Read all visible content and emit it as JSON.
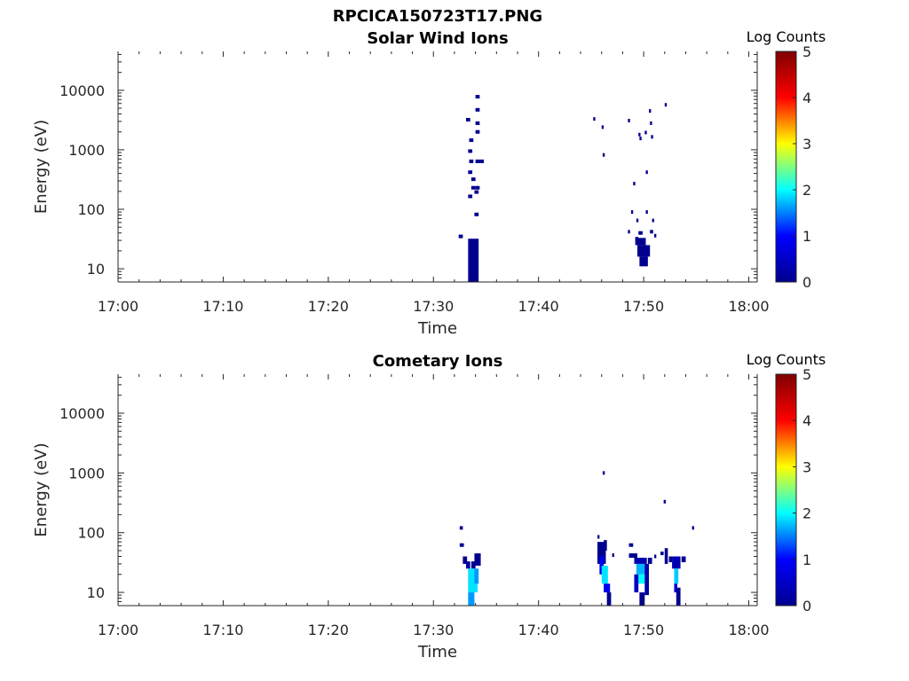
{
  "figure": {
    "title": "RPCICA150723T17.PNG"
  },
  "colormap": {
    "name": "jet",
    "stops": [
      "#00008f",
      "#0000ff",
      "#00ffff",
      "#ffff00",
      "#ff0000",
      "#800000"
    ],
    "label": "Log Counts",
    "range": [
      0,
      5
    ],
    "ticks": [
      0,
      1,
      2,
      3,
      4,
      5
    ]
  },
  "chart_data": [
    {
      "type": "heatmap",
      "title": "Solar Wind Ions",
      "xlabel": "Time",
      "ylabel": "Energy (eV)",
      "x_ticks": [
        "17:00",
        "17:10",
        "17:20",
        "17:30",
        "17:40",
        "17:50",
        "18:00"
      ],
      "x_tick_minutes": [
        0,
        10,
        20,
        30,
        40,
        50,
        60
      ],
      "xlim_minutes": [
        0,
        60.8
      ],
      "yscale": "log",
      "ylim": [
        6,
        45000
      ],
      "y_ticks": [
        10,
        100,
        1000,
        10000
      ],
      "y_tick_labels": [
        "10",
        "100",
        "1000",
        "10000"
      ],
      "cells": [
        {
          "t": 32.4,
          "dt": 0.4,
          "e": 35,
          "v": 0
        },
        {
          "t": 33.3,
          "dt": 1.0,
          "e": 6,
          "e2": 32,
          "v": 0
        },
        {
          "t": 33.1,
          "dt": 0.4,
          "e": 3200,
          "v": 0
        },
        {
          "t": 33.4,
          "dt": 0.4,
          "e": 1450,
          "v": 0
        },
        {
          "t": 33.3,
          "dt": 0.4,
          "e": 950,
          "v": 0
        },
        {
          "t": 33.4,
          "dt": 0.4,
          "e": 640,
          "v": 0
        },
        {
          "t": 33.3,
          "dt": 0.4,
          "e": 420,
          "v": 0
        },
        {
          "t": 33.6,
          "dt": 0.4,
          "e": 320,
          "v": 0
        },
        {
          "t": 33.6,
          "dt": 0.4,
          "e": 230,
          "v": 0
        },
        {
          "t": 33.3,
          "dt": 0.4,
          "e": 165,
          "v": 0
        },
        {
          "t": 33.9,
          "dt": 0.4,
          "e": 82,
          "v": 0
        },
        {
          "t": 34.0,
          "dt": 0.4,
          "e": 7800,
          "v": 0
        },
        {
          "t": 34.0,
          "dt": 0.4,
          "e": 4700,
          "v": 0
        },
        {
          "t": 34.0,
          "dt": 0.4,
          "e": 2800,
          "v": 0
        },
        {
          "t": 34.0,
          "dt": 0.4,
          "e": 2000,
          "v": 0
        },
        {
          "t": 34.0,
          "dt": 0.8,
          "e": 640,
          "v": 0
        },
        {
          "t": 34.0,
          "dt": 0.4,
          "e": 230,
          "v": 0
        },
        {
          "t": 33.9,
          "dt": 0.4,
          "e": 195,
          "v": 0
        },
        {
          "t": 45.2,
          "dt": 0.2,
          "e": 3300,
          "v": 0
        },
        {
          "t": 46.0,
          "dt": 0.2,
          "e": 2400,
          "v": 0
        },
        {
          "t": 46.1,
          "dt": 0.2,
          "e": 820,
          "v": 0
        },
        {
          "t": 48.5,
          "dt": 0.2,
          "e": 3100,
          "v": 0
        },
        {
          "t": 49.0,
          "dt": 0.2,
          "e": 270,
          "v": 0
        },
        {
          "t": 48.8,
          "dt": 0.2,
          "e": 90,
          "v": 0
        },
        {
          "t": 49.3,
          "dt": 0.2,
          "e": 65,
          "v": 0
        },
        {
          "t": 49.5,
          "dt": 0.2,
          "e": 1800,
          "v": 0
        },
        {
          "t": 49.6,
          "dt": 0.2,
          "e": 1550,
          "v": 0
        },
        {
          "t": 50.1,
          "dt": 0.2,
          "e": 1950,
          "v": 0
        },
        {
          "t": 50.6,
          "dt": 0.2,
          "e": 2800,
          "v": 0
        },
        {
          "t": 50.7,
          "dt": 0.2,
          "e": 1650,
          "v": 0
        },
        {
          "t": 50.2,
          "dt": 0.2,
          "e": 420,
          "v": 0
        },
        {
          "t": 50.5,
          "dt": 0.2,
          "e": 4500,
          "v": 0
        },
        {
          "t": 52.0,
          "dt": 0.2,
          "e": 5700,
          "v": 0
        },
        {
          "t": 50.2,
          "dt": 0.2,
          "e": 90,
          "v": 0
        },
        {
          "t": 50.8,
          "dt": 0.2,
          "e": 65,
          "v": 0
        },
        {
          "t": 48.5,
          "dt": 0.2,
          "e": 42,
          "v": 0
        },
        {
          "t": 49.2,
          "dt": 0.3,
          "e": 32,
          "v": 0
        },
        {
          "t": 49.5,
          "dt": 0.4,
          "e": 40,
          "v": 0
        },
        {
          "t": 50.6,
          "dt": 0.3,
          "e": 42,
          "v": 0
        },
        {
          "t": 51.0,
          "dt": 0.2,
          "e": 36,
          "v": 0
        },
        {
          "t": 49.2,
          "dt": 1.0,
          "e": 25,
          "e2": 33,
          "v": 0
        },
        {
          "t": 49.4,
          "dt": 1.2,
          "e": 16,
          "e2": 25,
          "v": 0
        },
        {
          "t": 49.6,
          "dt": 0.8,
          "e": 11,
          "e2": 16,
          "v": 0
        }
      ]
    },
    {
      "type": "heatmap",
      "title": "Cometary Ions",
      "xlabel": "Time",
      "ylabel": "Energy (eV)",
      "x_ticks": [
        "17:00",
        "17:10",
        "17:20",
        "17:30",
        "17:40",
        "17:50",
        "18:00"
      ],
      "x_tick_minutes": [
        0,
        10,
        20,
        30,
        40,
        50,
        60
      ],
      "xlim_minutes": [
        0,
        60.8
      ],
      "yscale": "log",
      "ylim": [
        6,
        45000
      ],
      "y_ticks": [
        10,
        100,
        1000,
        10000
      ],
      "y_tick_labels": [
        "10",
        "100",
        "1000",
        "10000"
      ],
      "cells": [
        {
          "t": 32.5,
          "dt": 0.3,
          "e": 120,
          "v": 0
        },
        {
          "t": 32.5,
          "dt": 0.4,
          "e": 62,
          "v": 0
        },
        {
          "t": 32.8,
          "dt": 0.4,
          "e": 30,
          "e2": 40,
          "v": 0
        },
        {
          "t": 33.1,
          "dt": 0.4,
          "e": 25,
          "e2": 33,
          "v": 0.2
        },
        {
          "t": 33.6,
          "dt": 0.4,
          "e": 25,
          "e2": 33,
          "v": 0
        },
        {
          "t": 33.9,
          "dt": 0.6,
          "e": 28,
          "e2": 45,
          "v": 0
        },
        {
          "t": 33.3,
          "dt": 0.6,
          "e": 6,
          "e2": 10,
          "v": 1.6
        },
        {
          "t": 33.3,
          "dt": 0.9,
          "e": 10,
          "e2": 25,
          "v": 1.9
        },
        {
          "t": 33.9,
          "dt": 0.4,
          "e": 14,
          "e2": 25,
          "v": 1.6
        },
        {
          "t": 46.1,
          "dt": 0.2,
          "e": 1000,
          "v": 0
        },
        {
          "t": 45.6,
          "dt": 0.2,
          "e": 85,
          "v": 0
        },
        {
          "t": 45.6,
          "dt": 0.8,
          "e": 30,
          "e2": 70,
          "v": 0
        },
        {
          "t": 46.2,
          "dt": 0.3,
          "e": 50,
          "e2": 75,
          "v": 0
        },
        {
          "t": 45.8,
          "dt": 0.4,
          "e": 20,
          "e2": 40,
          "v": 0.9
        },
        {
          "t": 46.0,
          "dt": 0.6,
          "e": 14,
          "e2": 28,
          "v": 1.9
        },
        {
          "t": 46.2,
          "dt": 0.6,
          "e": 10,
          "e2": 14,
          "v": 0.8
        },
        {
          "t": 46.5,
          "dt": 0.4,
          "e": 6,
          "e2": 10,
          "v": 0
        },
        {
          "t": 47.0,
          "dt": 0.2,
          "e": 42,
          "v": 0
        },
        {
          "t": 48.6,
          "dt": 0.4,
          "e": 62,
          "v": 0
        },
        {
          "t": 48.6,
          "dt": 0.8,
          "e": 38,
          "e2": 45,
          "v": 0
        },
        {
          "t": 49.1,
          "dt": 1.2,
          "e": 30,
          "e2": 38,
          "v": 0.3
        },
        {
          "t": 49.3,
          "dt": 1.0,
          "e": 20,
          "e2": 30,
          "v": 1.7
        },
        {
          "t": 49.5,
          "dt": 0.6,
          "e": 14,
          "e2": 20,
          "v": 2.0
        },
        {
          "t": 49.1,
          "dt": 0.4,
          "e": 10,
          "e2": 20,
          "v": 0.5
        },
        {
          "t": 49.6,
          "dt": 0.5,
          "e": 6,
          "e2": 10,
          "v": 0
        },
        {
          "t": 50.1,
          "dt": 0.4,
          "e": 9,
          "e2": 30,
          "v": 0.2
        },
        {
          "t": 50.4,
          "dt": 0.4,
          "e": 30,
          "e2": 38,
          "v": 0
        },
        {
          "t": 51.0,
          "dt": 0.2,
          "e": 40,
          "v": 0
        },
        {
          "t": 51.6,
          "dt": 0.3,
          "e": 45,
          "v": 0
        },
        {
          "t": 51.9,
          "dt": 0.2,
          "e": 330,
          "v": 0
        },
        {
          "t": 52.0,
          "dt": 0.3,
          "e": 30,
          "e2": 55,
          "v": 0
        },
        {
          "t": 52.4,
          "dt": 0.3,
          "e": 32,
          "e2": 40,
          "v": 0
        },
        {
          "t": 52.7,
          "dt": 0.8,
          "e": 25,
          "e2": 40,
          "v": 0.3
        },
        {
          "t": 52.9,
          "dt": 0.4,
          "e": 14,
          "e2": 25,
          "v": 1.8
        },
        {
          "t": 52.9,
          "dt": 0.3,
          "e": 10,
          "e2": 14,
          "v": 0.6
        },
        {
          "t": 53.1,
          "dt": 0.4,
          "e": 6,
          "e2": 12,
          "v": 0
        },
        {
          "t": 53.6,
          "dt": 0.4,
          "e": 32,
          "e2": 40,
          "v": 0
        },
        {
          "t": 54.6,
          "dt": 0.2,
          "e": 120,
          "v": 0
        }
      ]
    }
  ]
}
